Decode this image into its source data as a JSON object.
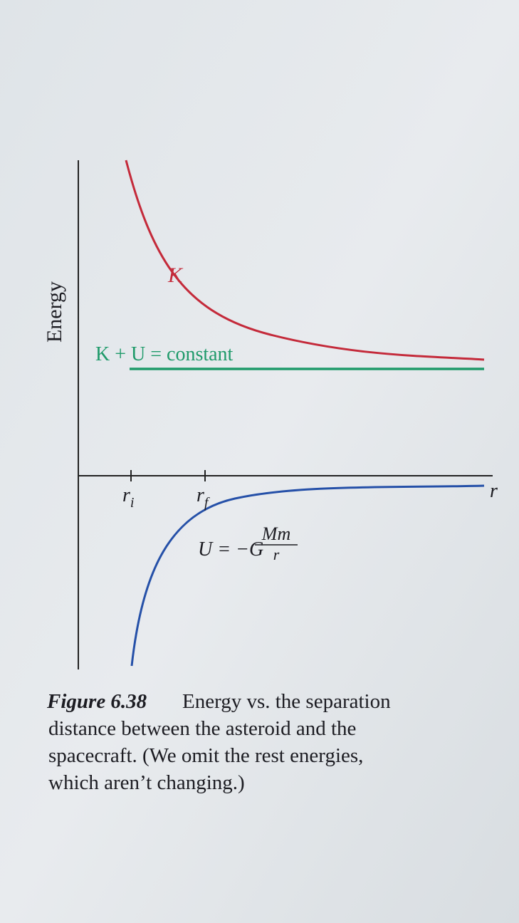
{
  "figure": {
    "axis_label": "Energy",
    "kinetic_label": "K",
    "total_label": "K + U = constant",
    "tick_labels": [
      {
        "symbol": "r",
        "subscript": "i"
      },
      {
        "symbol": "r",
        "subscript": "f"
      }
    ],
    "x_axis_label": "r",
    "potential_label": {
      "lhs": "U = −G",
      "numerator": "Mm",
      "denominator": "r"
    }
  },
  "caption": {
    "number": "Figure 6.38",
    "lines": [
      "Energy vs. the separation",
      "distance between the asteroid and the",
      "spacecraft. (We omit the rest energies,",
      "which aren’t changing.)"
    ]
  }
}
